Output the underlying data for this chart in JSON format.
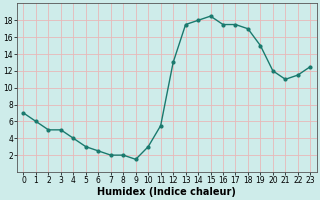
{
  "x": [
    0,
    1,
    2,
    3,
    4,
    5,
    6,
    7,
    8,
    9,
    10,
    11,
    12,
    13,
    14,
    15,
    16,
    17,
    18,
    19,
    20,
    21,
    22,
    23
  ],
  "y": [
    7,
    6,
    5,
    5,
    4,
    3,
    2.5,
    2,
    2,
    1.5,
    3,
    5.5,
    13,
    17.5,
    18,
    18.5,
    17.5,
    17.5,
    17,
    15,
    12,
    11,
    11.5,
    12.5
  ],
  "line_color": "#1a7a6e",
  "marker_color": "#1a7a6e",
  "bg_color": "#ceecea",
  "grid_color": "#e8b8b8",
  "xlabel": "Humidex (Indice chaleur)",
  "ylim": [
    0,
    20
  ],
  "xlim": [
    -0.5,
    23.5
  ],
  "yticks": [
    2,
    4,
    6,
    8,
    10,
    12,
    14,
    16,
    18
  ],
  "xticks": [
    0,
    1,
    2,
    3,
    4,
    5,
    6,
    7,
    8,
    9,
    10,
    11,
    12,
    13,
    14,
    15,
    16,
    17,
    18,
    19,
    20,
    21,
    22,
    23
  ],
  "tick_fontsize": 5.5,
  "xlabel_fontsize": 7,
  "marker_size": 2.0,
  "line_width": 1.0
}
